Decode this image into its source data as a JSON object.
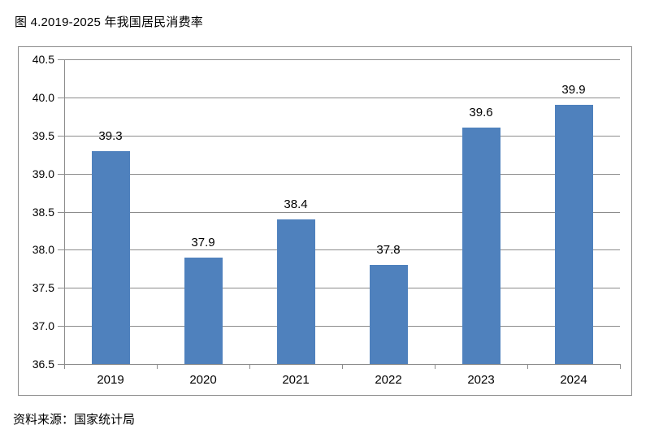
{
  "page": {
    "title": "图 4.2019-2025 年我国居民消费率",
    "source": "资料来源：国家统计局"
  },
  "chart_data": {
    "type": "bar",
    "title": "图 4.2019-2025 年我国居民消费率",
    "categories": [
      "2019",
      "2020",
      "2021",
      "2022",
      "2023",
      "2024"
    ],
    "values": [
      39.3,
      37.9,
      38.4,
      37.8,
      39.6,
      39.9
    ],
    "data_labels": [
      "39.3",
      "37.9",
      "38.4",
      "37.8",
      "39.6",
      "39.9"
    ],
    "xlabel": "",
    "ylabel": "",
    "ylim": [
      36.5,
      40.5
    ],
    "ytick_step": 0.5,
    "yticks": [
      "36.5",
      "37.0",
      "37.5",
      "38.0",
      "38.5",
      "39.0",
      "39.5",
      "40.0",
      "40.5"
    ],
    "grid": true,
    "legend": "none",
    "bar_color": "#4F81BD",
    "gridline_color": "#8C8C8C",
    "axis_color": "#8C8C8C",
    "frame_border_color": "#8C8C8C",
    "source_note": "资料来源：国家统计局"
  }
}
